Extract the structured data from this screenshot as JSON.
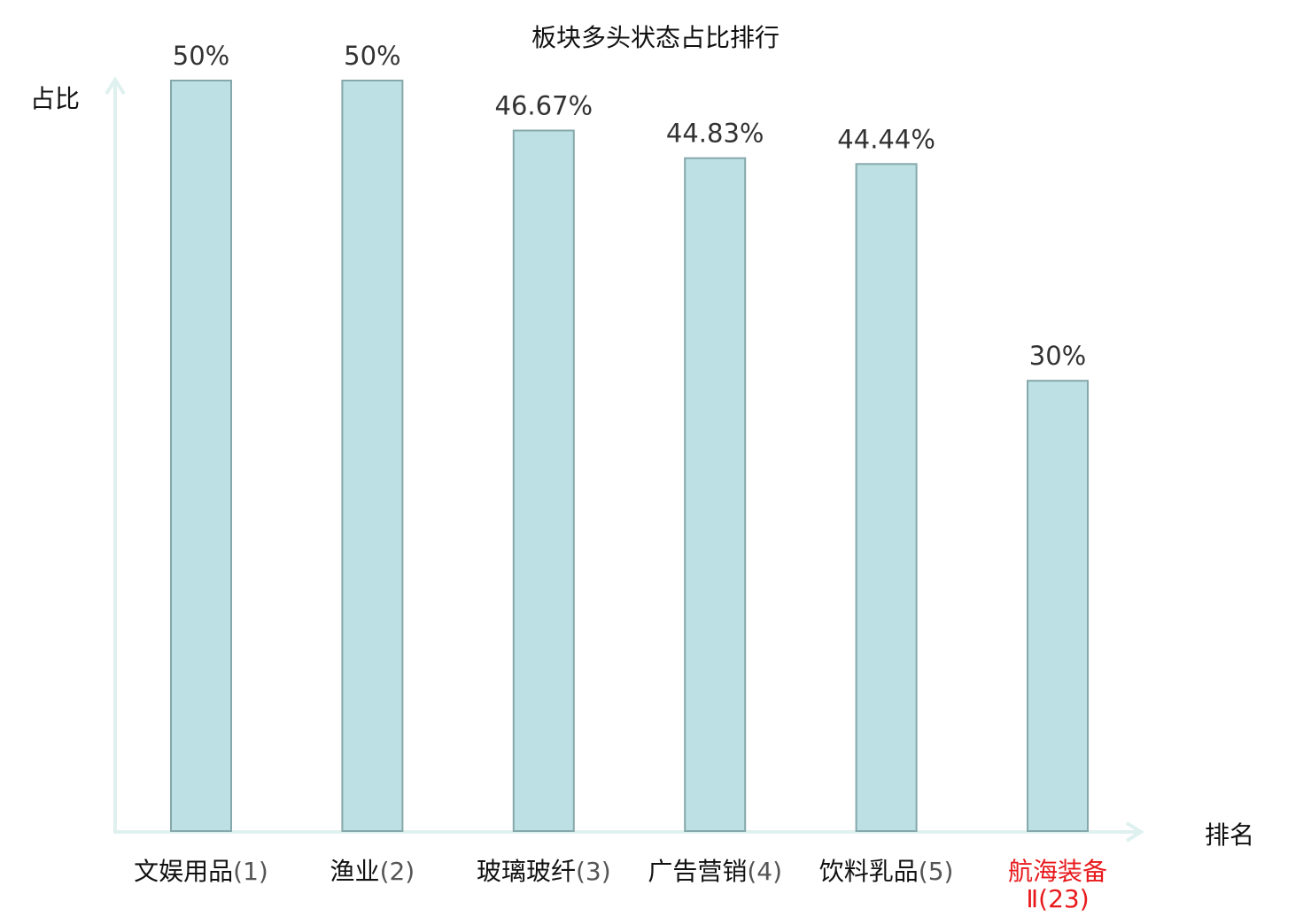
{
  "chart_data": {
    "type": "bar",
    "title": "板块多头状态占比排行",
    "xlabel": "排名",
    "ylabel": "占比",
    "ylim": [
      0,
      50
    ],
    "grid": false,
    "categories": [
      {
        "name": "文娱用品",
        "rank": "(1)"
      },
      {
        "name": "渔业",
        "rank": "(2)"
      },
      {
        "name": "玻璃玻纤",
        "rank": "(3)"
      },
      {
        "name": "广告营销",
        "rank": "(4)"
      },
      {
        "name": "饮料乳品",
        "rank": "(5)"
      },
      {
        "name": "航海装备",
        "rank": "Ⅱ(23)",
        "highlight": true
      }
    ],
    "values": [
      50,
      50,
      46.67,
      44.83,
      44.44,
      30
    ],
    "value_labels": [
      "50%",
      "50%",
      "46.67%",
      "44.83%",
      "44.44%",
      "30%"
    ]
  },
  "colors": {
    "bar_fill": "#bce0e3",
    "bar_stroke": "#86a8aa",
    "axis": "#dff1ee",
    "text": "#111111",
    "value_text": "#333333",
    "rank_text": "#555555",
    "highlight": "#e8191c"
  }
}
